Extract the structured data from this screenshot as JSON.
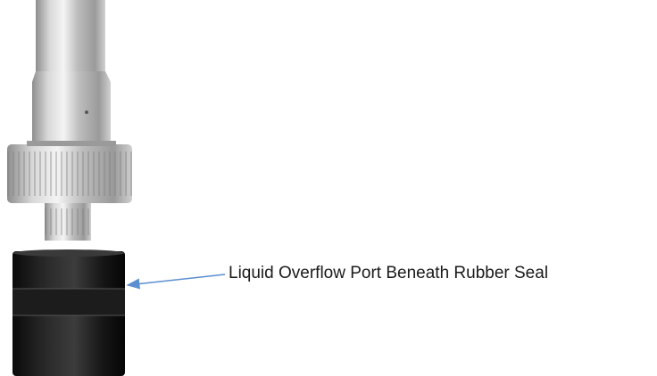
{
  "annotation": {
    "label": "Liquid Overflow Port Beneath Rubber Seal"
  }
}
